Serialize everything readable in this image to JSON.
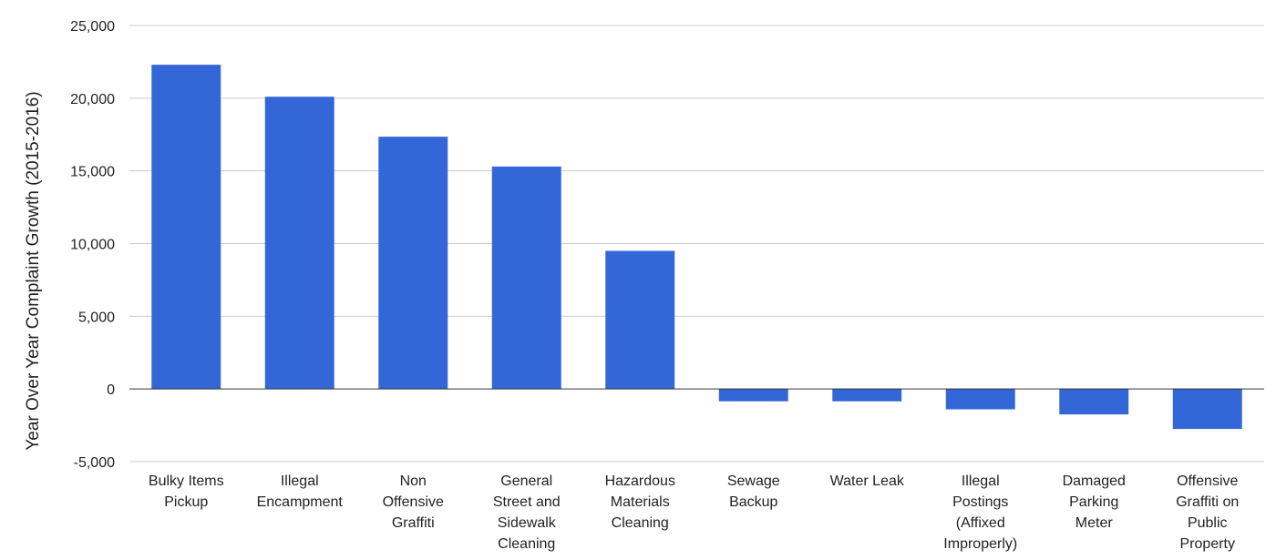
{
  "chart_data": {
    "type": "bar",
    "title": "",
    "xlabel": "",
    "ylabel": "Year Over Year Complaint Growth (2015-2016)",
    "ylim": [
      -5000,
      25000
    ],
    "yticks": [
      -5000,
      0,
      5000,
      10000,
      15000,
      20000,
      25000
    ],
    "ytick_labels": [
      "-5,000",
      "0",
      "5,000",
      "10,000",
      "15,000",
      "20,000",
      "25,000"
    ],
    "grid": true,
    "legend": "none",
    "bar_color": "#3366d6",
    "categories": [
      [
        "Bulky Items",
        "Pickup"
      ],
      [
        "Illegal",
        "Encampment"
      ],
      [
        "Non",
        "Offensive",
        "Graffiti"
      ],
      [
        "General",
        "Street and",
        "Sidewalk",
        "Cleaning"
      ],
      [
        "Hazardous",
        "Materials",
        "Cleaning"
      ],
      [
        "Sewage",
        "Backup"
      ],
      [
        "Water Leak"
      ],
      [
        "Illegal",
        "Postings",
        "(Affixed",
        "Improperly)"
      ],
      [
        "Damaged",
        "Parking",
        "Meter"
      ],
      [
        "Offensive",
        "Graffiti on",
        "Public",
        "Property"
      ]
    ],
    "values": [
      22300,
      20100,
      17350,
      15300,
      9500,
      -850,
      -850,
      -1400,
      -1750,
      -2750
    ]
  }
}
